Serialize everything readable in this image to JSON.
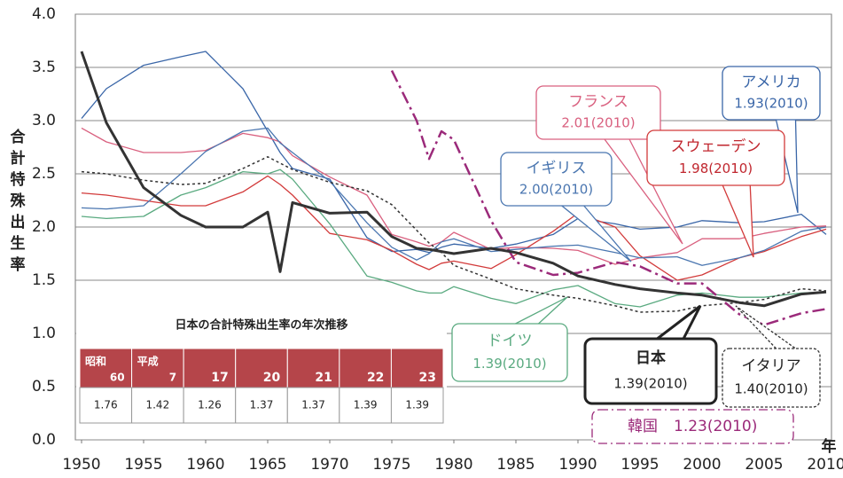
{
  "chart_data": {
    "type": "line",
    "y_label": "合計特殊出生率",
    "x_label": "年",
    "x": [
      1950,
      1952,
      1955,
      1958,
      1960,
      1963,
      1965,
      1966,
      1967,
      1970,
      1973,
      1975,
      1977,
      1978,
      1979,
      1980,
      1983,
      1985,
      1988,
      1990,
      1993,
      1995,
      1998,
      2000,
      2003,
      2005,
      2008,
      2010
    ],
    "xlim": [
      1950,
      2010
    ],
    "xticks": [
      1950,
      1955,
      1960,
      1965,
      1970,
      1975,
      1980,
      1985,
      1990,
      1995,
      2000,
      2005,
      2010
    ],
    "ylim": [
      0,
      4
    ],
    "yticks": [
      {
        "value": 0,
        "label": "0.0"
      },
      0.5,
      {
        "value": 1,
        "label": "1.0"
      },
      1.5,
      {
        "value": 2,
        "label": "2.0"
      },
      2.5,
      {
        "value": 3,
        "label": "3.0"
      },
      3.5,
      {
        "value": 4,
        "label": "4.0"
      }
    ],
    "grid": true,
    "series": [
      {
        "name": "アメリカ",
        "label": "1.93(2010)",
        "color": "#3a66a8",
        "style": "solid",
        "width": 1.3,
        "values": [
          3.02,
          3.3,
          3.52,
          3.6,
          3.65,
          3.3,
          2.9,
          2.7,
          2.55,
          2.45,
          1.9,
          1.77,
          1.79,
          1.76,
          1.81,
          1.84,
          1.8,
          1.84,
          1.93,
          2.08,
          2.03,
          1.98,
          2.0,
          2.06,
          2.04,
          2.05,
          2.12,
          1.93
        ]
      },
      {
        "name": "フランス",
        "label": "2.01(2010)",
        "color": "#d9607f",
        "style": "solid",
        "width": 1.3,
        "values": [
          2.93,
          2.8,
          2.7,
          2.7,
          2.72,
          2.88,
          2.84,
          2.8,
          2.67,
          2.47,
          2.3,
          1.93,
          1.86,
          1.82,
          1.86,
          1.95,
          1.79,
          1.81,
          1.8,
          1.78,
          1.65,
          1.71,
          1.76,
          1.89,
          1.89,
          1.94,
          2.0,
          2.01
        ]
      },
      {
        "name": "スウェーデン",
        "label": "1.98(2010)",
        "color": "#d23a3a",
        "style": "solid",
        "width": 1.3,
        "values": [
          2.32,
          2.3,
          2.25,
          2.2,
          2.2,
          2.33,
          2.48,
          2.4,
          2.3,
          1.94,
          1.88,
          1.78,
          1.65,
          1.6,
          1.66,
          1.68,
          1.61,
          1.74,
          1.96,
          2.13,
          2.0,
          1.73,
          1.5,
          1.55,
          1.71,
          1.77,
          1.91,
          1.98
        ]
      },
      {
        "name": "イギリス",
        "label": "2.00(2010)",
        "color": "#4a76b0",
        "style": "solid",
        "width": 1.3,
        "values": [
          2.18,
          2.17,
          2.2,
          2.5,
          2.71,
          2.9,
          2.93,
          2.79,
          2.7,
          2.43,
          2.04,
          1.81,
          1.69,
          1.75,
          1.86,
          1.89,
          1.77,
          1.79,
          1.82,
          1.83,
          1.76,
          1.71,
          1.72,
          1.64,
          1.71,
          1.78,
          1.96,
          2.0
        ]
      },
      {
        "name": "ドイツ",
        "label": "1.39(2010)",
        "color": "#5aaa80",
        "style": "solid",
        "width": 1.3,
        "values": [
          2.1,
          2.08,
          2.1,
          2.3,
          2.37,
          2.52,
          2.5,
          2.54,
          2.45,
          2.03,
          1.54,
          1.48,
          1.4,
          1.38,
          1.38,
          1.44,
          1.33,
          1.28,
          1.41,
          1.45,
          1.28,
          1.25,
          1.36,
          1.38,
          1.34,
          1.34,
          1.38,
          1.39
        ]
      },
      {
        "name": "イタリア",
        "label": "1.40(2010)",
        "color": "#333333",
        "style": "dotted",
        "width": 1.5,
        "values": [
          2.52,
          2.5,
          2.44,
          2.4,
          2.41,
          2.55,
          2.66,
          2.6,
          2.54,
          2.42,
          2.34,
          2.21,
          1.97,
          1.85,
          1.76,
          1.64,
          1.51,
          1.42,
          1.36,
          1.33,
          1.26,
          1.2,
          1.21,
          1.26,
          1.29,
          1.32,
          1.42,
          1.4
        ]
      },
      {
        "name": "韓国",
        "label": "1.23(2010)",
        "color": "#9b2a7a",
        "style": "dashdot",
        "width": 2.5,
        "values": [
          null,
          null,
          null,
          null,
          null,
          null,
          null,
          null,
          null,
          null,
          null,
          3.47,
          3.0,
          2.64,
          2.9,
          2.82,
          2.06,
          1.67,
          1.55,
          1.57,
          1.67,
          1.63,
          1.47,
          1.47,
          1.18,
          1.08,
          1.19,
          1.23
        ]
      },
      {
        "name": "日本",
        "label": "1.39(2010)",
        "color": "#333333",
        "style": "solid",
        "width": 3,
        "values": [
          3.65,
          2.98,
          2.37,
          2.11,
          2.0,
          2.0,
          2.14,
          1.58,
          2.23,
          2.13,
          2.14,
          1.91,
          1.8,
          1.79,
          1.77,
          1.75,
          1.8,
          1.76,
          1.66,
          1.54,
          1.46,
          1.42,
          1.38,
          1.36,
          1.29,
          1.26,
          1.37,
          1.39
        ]
      }
    ]
  },
  "inset_table": {
    "title": "日本の合計特殊出生率の年次推移",
    "header": [
      [
        "昭和",
        "60"
      ],
      [
        "平成",
        "7"
      ],
      [
        "17"
      ],
      [
        "20"
      ],
      [
        "21"
      ],
      [
        "22"
      ],
      [
        "23"
      ]
    ],
    "values": [
      1.76,
      1.42,
      1.26,
      1.37,
      1.37,
      1.39,
      1.39
    ]
  }
}
